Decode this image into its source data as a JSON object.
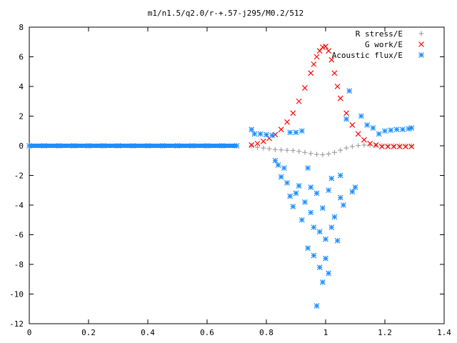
{
  "title": "m1/n1.5/q2.0/r-+.57-j295/M0.2/512",
  "chart_data": {
    "type": "scatter",
    "title": "m1/n1.5/q2.0/r-+.57-j295/M0.2/512",
    "xlabel": "",
    "ylabel": "",
    "xlim": [
      0,
      1.4
    ],
    "ylim": [
      -12,
      8
    ],
    "x_ticks": [
      0,
      0.2,
      0.4,
      0.6,
      0.8,
      1,
      1.2,
      1.4
    ],
    "y_ticks": [
      -12,
      -10,
      -8,
      -6,
      -4,
      -2,
      0,
      2,
      4,
      6,
      8
    ],
    "x_tick_labels": [
      "0",
      "0.2",
      "0.4",
      "0.6",
      "0.8",
      "1",
      "1.2",
      "1.4"
    ],
    "y_tick_labels": [
      "-12",
      "-10",
      "-8",
      "-6",
      "-4",
      "-2",
      "0",
      "2",
      "4",
      "6",
      "8"
    ],
    "grid": false,
    "legend_position": "top-right",
    "series": [
      {
        "name": "R stress/E",
        "marker": "plus",
        "color": "#a0a0a0",
        "x": [
          0.75,
          0.77,
          0.79,
          0.81,
          0.83,
          0.85,
          0.87,
          0.89,
          0.91,
          0.93,
          0.95,
          0.97,
          0.99,
          1.01,
          1.03,
          1.05,
          1.07,
          1.09,
          1.11,
          1.13,
          1.15,
          1.17,
          1.19,
          1.21,
          1.23,
          1.25,
          1.27,
          1.29
        ],
        "y": [
          0.0,
          -0.1,
          -0.15,
          -0.2,
          -0.25,
          -0.28,
          -0.3,
          -0.32,
          -0.38,
          -0.45,
          -0.52,
          -0.58,
          -0.6,
          -0.55,
          -0.45,
          -0.3,
          -0.15,
          -0.05,
          0.02,
          0.05,
          0.05,
          0.03,
          0.02,
          0.0,
          0.0,
          0.0,
          0.0,
          0.0
        ]
      },
      {
        "name": "G work/E",
        "marker": "cross",
        "color": "#ff0000",
        "x": [
          0.75,
          0.77,
          0.79,
          0.81,
          0.83,
          0.85,
          0.87,
          0.89,
          0.91,
          0.93,
          0.95,
          0.96,
          0.97,
          0.98,
          0.99,
          1.0,
          1.01,
          1.02,
          1.03,
          1.04,
          1.05,
          1.07,
          1.09,
          1.11,
          1.13,
          1.15,
          1.17,
          1.19,
          1.21,
          1.23,
          1.25,
          1.27,
          1.29
        ],
        "y": [
          0.05,
          0.15,
          0.3,
          0.5,
          0.75,
          1.1,
          1.6,
          2.2,
          3.0,
          3.9,
          4.9,
          5.5,
          6.0,
          6.4,
          6.65,
          6.7,
          6.4,
          5.8,
          4.9,
          4.0,
          3.2,
          2.2,
          1.4,
          0.8,
          0.4,
          0.15,
          0.05,
          -0.05,
          -0.05,
          -0.05,
          -0.05,
          -0.05,
          -0.05
        ]
      },
      {
        "name": "Acoustic flux/E",
        "marker": "star",
        "color": "#1e8fff",
        "x": [
          0.0,
          0.05,
          0.1,
          0.15,
          0.2,
          0.25,
          0.3,
          0.35,
          0.4,
          0.45,
          0.5,
          0.55,
          0.6,
          0.65,
          0.7,
          0.75,
          0.76,
          0.78,
          0.8,
          0.82,
          0.84,
          0.83,
          0.85,
          0.86,
          0.87,
          0.88,
          0.88,
          0.89,
          0.9,
          0.9,
          0.91,
          0.92,
          0.92,
          0.93,
          0.94,
          0.94,
          0.95,
          0.95,
          0.96,
          0.96,
          0.97,
          0.97,
          0.98,
          0.98,
          0.99,
          0.99,
          1.0,
          1.0,
          1.01,
          1.01,
          1.02,
          1.02,
          1.03,
          1.04,
          1.05,
          1.05,
          1.06,
          1.07,
          1.08,
          1.09,
          1.1,
          1.12,
          1.14,
          1.16,
          1.18,
          1.2,
          1.22,
          1.24,
          1.26,
          1.28,
          1.29
        ],
        "y": [
          0.0,
          0.0,
          0.0,
          0.0,
          0.0,
          0.0,
          0.0,
          0.0,
          0.0,
          0.0,
          0.0,
          0.0,
          0.0,
          0.0,
          0.0,
          1.1,
          0.8,
          0.8,
          0.75,
          0.7,
          -1.3,
          -1.0,
          -2.1,
          -1.5,
          -2.5,
          -3.4,
          0.9,
          -4.1,
          -3.2,
          0.9,
          -2.7,
          -5.0,
          1.0,
          -3.8,
          -6.9,
          -1.5,
          -4.5,
          -2.8,
          -5.5,
          -7.4,
          -10.8,
          -3.2,
          -8.2,
          -5.8,
          -9.2,
          -4.2,
          -7.6,
          -6.3,
          -8.6,
          -3.0,
          -5.5,
          -2.2,
          -4.8,
          -6.4,
          -3.5,
          -2.0,
          -4.0,
          1.8,
          3.7,
          -3.1,
          -2.8,
          2.0,
          1.4,
          1.2,
          0.8,
          1.0,
          1.05,
          1.1,
          1.1,
          1.15,
          1.2
        ]
      }
    ]
  }
}
